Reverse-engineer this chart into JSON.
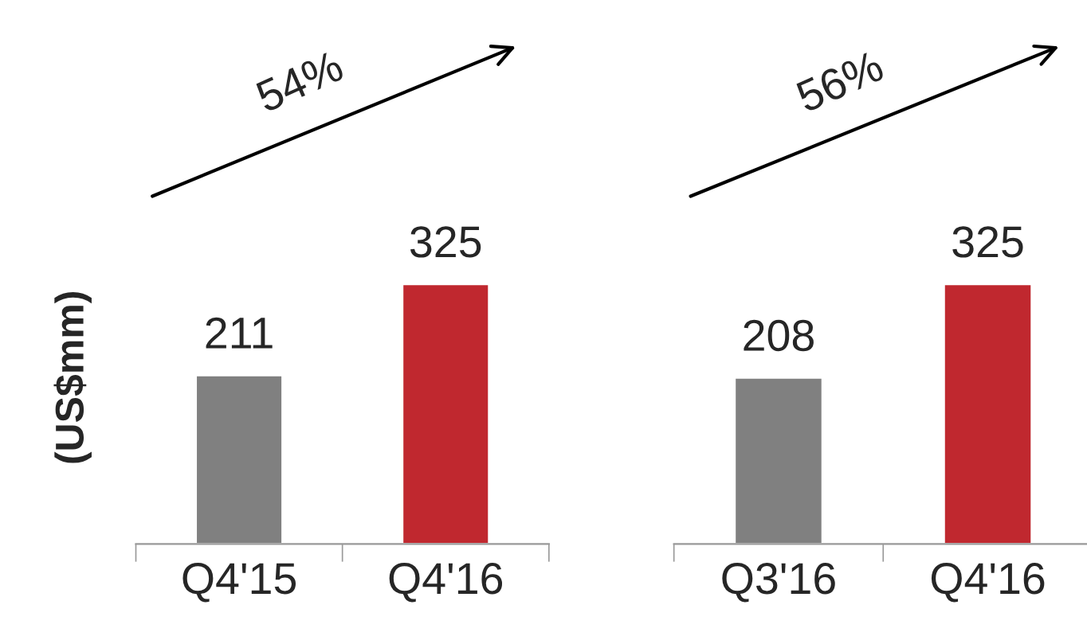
{
  "chart_data": [
    {
      "type": "bar",
      "ylabel": "(US$mm)",
      "categories": [
        "Q4'15",
        "Q4'16"
      ],
      "values": [
        211,
        325
      ],
      "colors": [
        "#808080",
        "#c0282f"
      ],
      "data_labels": true,
      "annotations": [
        "54%"
      ],
      "grid": false
    },
    {
      "type": "bar",
      "categories": [
        "Q3'16",
        "Q4'16"
      ],
      "values": [
        208,
        325
      ],
      "colors": [
        "#808080",
        "#c0282f"
      ],
      "data_labels": true,
      "annotations": [
        "56%"
      ],
      "grid": false
    }
  ]
}
